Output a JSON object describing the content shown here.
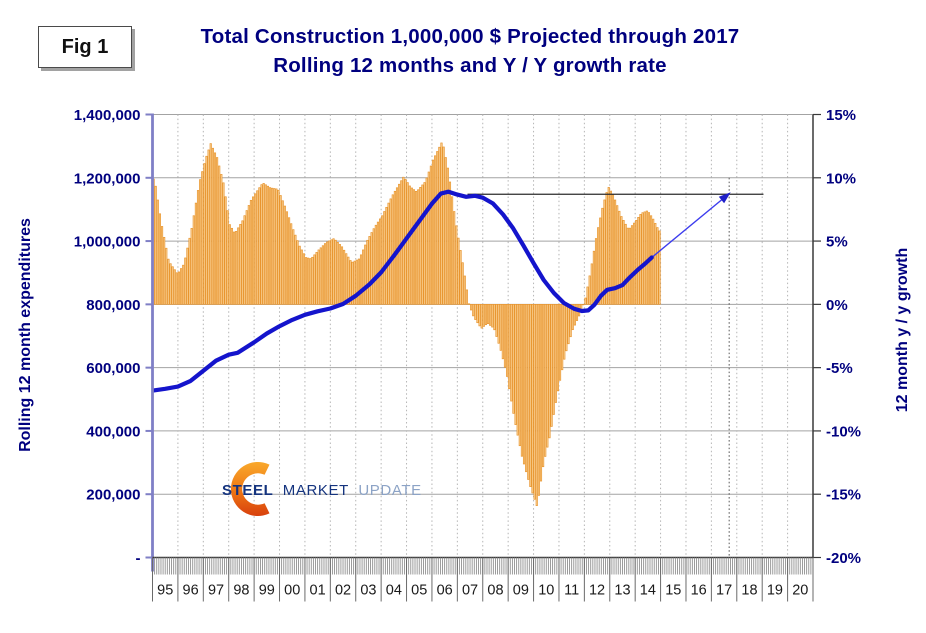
{
  "figure_label": "Fig 1",
  "title_line1": "Total Construction 1,000,000 $ Projected through 2017",
  "title_line2": "Rolling 12 months and Y / Y growth rate",
  "left_axis_title": "Rolling 12 month expenditures",
  "right_axis_title": "12 month y / y growth",
  "logo": {
    "word1": "STEEL",
    "word2": "MARKET",
    "word3": "UPDATE"
  },
  "colors": {
    "navy_text": "#00007F",
    "bar_fill": "#FBD49A",
    "bar_stroke": "#E8952E",
    "line_blue": "#1414CC",
    "projection_blue": "#3C3CEE",
    "annotation_black": "#2b2b2b",
    "left_axis": "#7F7FC6",
    "logo_orange_top": "#F9A92C",
    "logo_orange_bottom": "#D8400D"
  },
  "chart_data": {
    "type": "combo bar+line (monthly bars = y/y growth on right axis; thick line = rolling 12-month expenditures on left axis)",
    "title": "Total Construction 1,000,000 $ Projected through 2017 — Rolling 12 months and Y / Y growth rate",
    "grid": "horizontal solid gray every 5% (200,000); vertical dashed gray at each year boundary",
    "left_axis": {
      "title": "Rolling 12 month expenditures",
      "tick_labels": [
        "1,400,000",
        "1,200,000",
        "1,000,000",
        "800,000",
        "600,000",
        "400,000",
        "200,000",
        "-"
      ],
      "tick_values": [
        1400000,
        1200000,
        1000000,
        800000,
        600000,
        400000,
        200000,
        0
      ],
      "range": [
        0,
        1400000
      ]
    },
    "right_axis": {
      "title": "12 month y / y growth",
      "tick_labels": [
        "15%",
        "10%",
        "5%",
        "0%",
        "-5%",
        "-10%",
        "-15%",
        "-20%"
      ],
      "tick_values": [
        15,
        10,
        5,
        0,
        -5,
        -10,
        -15,
        -20
      ],
      "range_pct": [
        -20,
        15
      ]
    },
    "x_axis": {
      "labels": [
        "95",
        "96",
        "97",
        "98",
        "99",
        "00",
        "01",
        "02",
        "03",
        "04",
        "05",
        "06",
        "07",
        "08",
        "09",
        "10",
        "11",
        "12",
        "13",
        "14",
        "15",
        "16",
        "17",
        "18",
        "19",
        "20"
      ],
      "range_years": [
        1995,
        2021
      ],
      "minor_ticks": "monthly"
    },
    "bar_series": {
      "name": "Y / Y growth rate (monthly, %, right axis)",
      "months_span": [
        1995.0,
        2014.92
      ],
      "keypoints": [
        [
          1995.04,
          9.9
        ],
        [
          1995.3,
          6.5
        ],
        [
          1995.6,
          3.4
        ],
        [
          1995.95,
          2.4
        ],
        [
          1996.2,
          3.2
        ],
        [
          1996.5,
          6.0
        ],
        [
          1996.8,
          9.6
        ],
        [
          1997.05,
          11.5
        ],
        [
          1997.25,
          12.7
        ],
        [
          1997.5,
          11.6
        ],
        [
          1997.75,
          9.6
        ],
        [
          1998.0,
          6.3
        ],
        [
          1998.2,
          5.6
        ],
        [
          1998.5,
          6.6
        ],
        [
          1998.85,
          8.3
        ],
        [
          1999.3,
          9.6
        ],
        [
          1999.6,
          9.2
        ],
        [
          1999.9,
          9.1
        ],
        [
          2000.2,
          7.6
        ],
        [
          2000.5,
          5.9
        ],
        [
          2000.75,
          4.6
        ],
        [
          2001.0,
          3.7
        ],
        [
          2001.2,
          3.6
        ],
        [
          2001.5,
          4.3
        ],
        [
          2001.8,
          4.9
        ],
        [
          2002.1,
          5.2
        ],
        [
          2002.4,
          4.6
        ],
        [
          2002.8,
          3.3
        ],
        [
          2003.1,
          3.6
        ],
        [
          2003.4,
          5.0
        ],
        [
          2003.7,
          6.1
        ],
        [
          2004.0,
          7.0
        ],
        [
          2004.4,
          8.6
        ],
        [
          2004.85,
          10.1
        ],
        [
          2005.1,
          9.3
        ],
        [
          2005.35,
          8.9
        ],
        [
          2005.7,
          9.7
        ],
        [
          2006.0,
          11.4
        ],
        [
          2006.37,
          12.9
        ],
        [
          2006.6,
          10.6
        ],
        [
          2006.9,
          6.4
        ],
        [
          2007.2,
          2.9
        ],
        [
          2007.42,
          0.0
        ],
        [
          2007.6,
          -1.0
        ],
        [
          2007.9,
          -1.9
        ],
        [
          2008.15,
          -1.5
        ],
        [
          2008.4,
          -1.9
        ],
        [
          2008.65,
          -3.5
        ],
        [
          2008.9,
          -5.5
        ],
        [
          2009.2,
          -9.0
        ],
        [
          2009.5,
          -12.0
        ],
        [
          2009.8,
          -14.2
        ],
        [
          2010.1,
          -16.0
        ],
        [
          2010.35,
          -12.6
        ],
        [
          2010.6,
          -10.4
        ],
        [
          2010.9,
          -7.0
        ],
        [
          2011.2,
          -4.0
        ],
        [
          2011.5,
          -2.0
        ],
        [
          2011.8,
          -0.7
        ],
        [
          2012.0,
          0.5
        ],
        [
          2012.2,
          2.6
        ],
        [
          2012.45,
          5.6
        ],
        [
          2012.7,
          7.9
        ],
        [
          2012.9,
          9.3
        ],
        [
          2013.1,
          8.6
        ],
        [
          2013.4,
          7.0
        ],
        [
          2013.7,
          5.9
        ],
        [
          2013.95,
          6.5
        ],
        [
          2014.2,
          7.2
        ],
        [
          2014.45,
          7.4
        ],
        [
          2014.65,
          6.8
        ],
        [
          2014.9,
          5.8
        ]
      ]
    },
    "line_series": {
      "name": "Rolling 12 month expenditures ($1,000, left axis)",
      "keypoints": [
        [
          1995.05,
          528000
        ],
        [
          1995.5,
          533000
        ],
        [
          1996.0,
          540000
        ],
        [
          1996.5,
          558000
        ],
        [
          1997.0,
          590000
        ],
        [
          1997.5,
          622000
        ],
        [
          1998.0,
          641000
        ],
        [
          1998.35,
          647000
        ],
        [
          1999.0,
          680000
        ],
        [
          1999.5,
          708000
        ],
        [
          2000.0,
          731000
        ],
        [
          2000.5,
          751000
        ],
        [
          2001.0,
          767000
        ],
        [
          2001.5,
          778000
        ],
        [
          2002.0,
          787000
        ],
        [
          2002.5,
          801000
        ],
        [
          2003.0,
          827000
        ],
        [
          2003.55,
          864000
        ],
        [
          2004.0,
          901000
        ],
        [
          2004.5,
          953000
        ],
        [
          2005.0,
          1008000
        ],
        [
          2005.5,
          1063000
        ],
        [
          2006.0,
          1118000
        ],
        [
          2006.35,
          1150000
        ],
        [
          2006.65,
          1156000
        ],
        [
          2007.0,
          1147000
        ],
        [
          2007.35,
          1140000
        ],
        [
          2007.7,
          1143000
        ],
        [
          2008.0,
          1137000
        ],
        [
          2008.4,
          1119000
        ],
        [
          2008.8,
          1084000
        ],
        [
          2009.2,
          1040000
        ],
        [
          2009.6,
          986000
        ],
        [
          2010.0,
          930000
        ],
        [
          2010.4,
          877000
        ],
        [
          2010.8,
          836000
        ],
        [
          2011.2,
          804000
        ],
        [
          2011.6,
          786000
        ],
        [
          2011.9,
          779000
        ],
        [
          2012.15,
          781000
        ],
        [
          2012.4,
          799000
        ],
        [
          2012.65,
          827000
        ],
        [
          2012.9,
          846000
        ],
        [
          2013.2,
          851000
        ],
        [
          2013.5,
          861000
        ],
        [
          2013.8,
          886000
        ],
        [
          2014.1,
          909000
        ],
        [
          2014.4,
          929000
        ],
        [
          2014.65,
          948000
        ]
      ]
    },
    "annotations": {
      "projection_arrow": {
        "from": [
          2014.65,
          948000
        ],
        "to": [
          2017.7,
          1150000
        ],
        "style": "thin blue line with filled arrowhead"
      },
      "level_line": {
        "value": 1148000,
        "from_year": 2007.4,
        "to_year": 2019.05,
        "style": "thin black horizontal line"
      },
      "drop_line": {
        "year": 2017.7,
        "from_pct": 10,
        "to_pct": -20,
        "style": "dotted vertical line at arrow tip"
      }
    }
  }
}
